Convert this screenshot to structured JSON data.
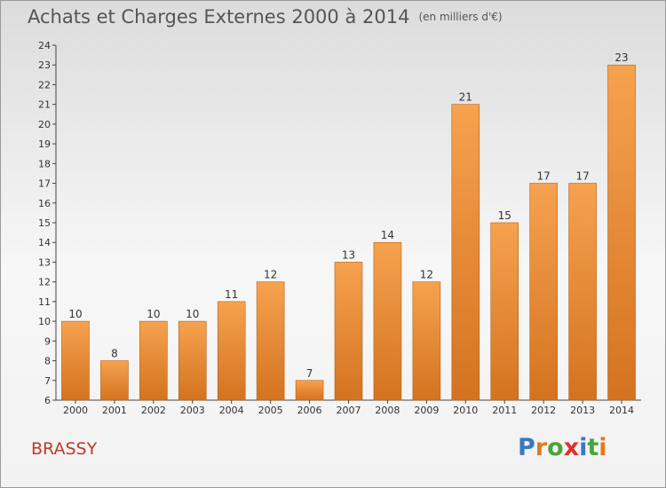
{
  "title": "Achats et Charges Externes 2000 à 2014",
  "subtitle": "(en milliers d'€)",
  "footer_label": "BRASSY",
  "logo": {
    "text": "Proxiti",
    "letter_colors": [
      "#3a78c2",
      "#e07b22",
      "#47a63a",
      "#e0302b",
      "#3a78c2",
      "#47a63a",
      "#e07b22"
    ]
  },
  "colors": {
    "bar_top": "#f6a24f",
    "bar_bottom": "#d4731f",
    "bar_edge": "#b86014",
    "axis": "#444444",
    "title": "#555555",
    "footer": "#c0392b"
  },
  "chart_data": {
    "type": "bar",
    "categories": [
      "2000",
      "2001",
      "2002",
      "2003",
      "2004",
      "2005",
      "2006",
      "2007",
      "2008",
      "2009",
      "2010",
      "2011",
      "2012",
      "2013",
      "2014"
    ],
    "values": [
      10,
      8,
      10,
      10,
      11,
      12,
      7,
      13,
      14,
      12,
      21,
      15,
      17,
      17,
      23
    ],
    "ylim": [
      6,
      24
    ],
    "yticks": [
      6,
      7,
      8,
      9,
      10,
      11,
      12,
      13,
      14,
      15,
      16,
      17,
      18,
      19,
      20,
      21,
      22,
      23,
      24
    ],
    "grid": false
  }
}
